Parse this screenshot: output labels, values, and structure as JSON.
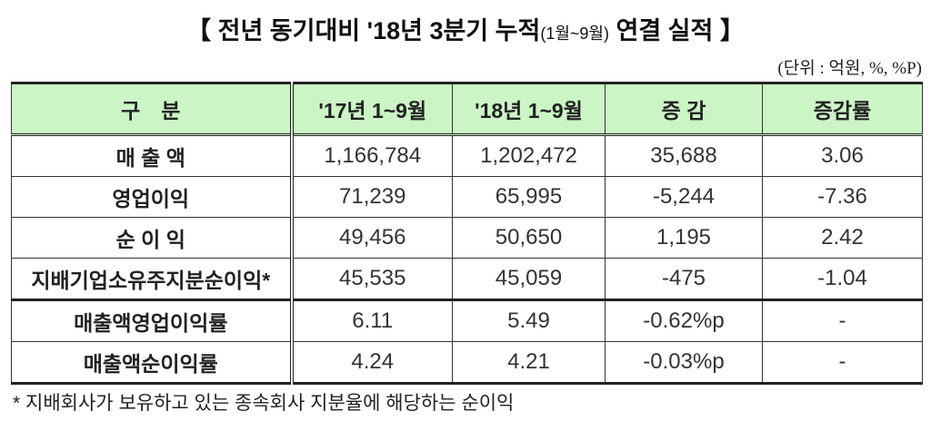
{
  "title": {
    "main": "【 전년 동기대비 '18년 3분기 누적",
    "sub": "(1월~9월)",
    "tail": "연결 실적 】"
  },
  "unit": "(단위 : 억원, %, %P)",
  "table": {
    "headers": [
      "구　분",
      "'17년 1~9월",
      "'18년 1~9월",
      "증 감",
      "증감률"
    ],
    "rows": [
      [
        "매 출 액",
        "1,166,784",
        "1,202,472",
        "35,688",
        "3.06"
      ],
      [
        "영업이익",
        "71,239",
        "65,995",
        "-5,244",
        "-7.36"
      ],
      [
        "순 이 익",
        "49,456",
        "50,650",
        "1,195",
        "2.42"
      ],
      [
        "지배기업소유주지분순이익*",
        "45,535",
        "45,059",
        "-475",
        "-1.04"
      ],
      [
        "매출액영업이익률",
        "6.11",
        "5.49",
        "-0.62%p",
        "-"
      ],
      [
        "매출액순이익률",
        "4.24",
        "4.21",
        "-0.03%p",
        "-"
      ]
    ]
  },
  "footnote": "* 지배회사가 보유하고 있는 종속회사 지분율에 해당하는 순이익"
}
